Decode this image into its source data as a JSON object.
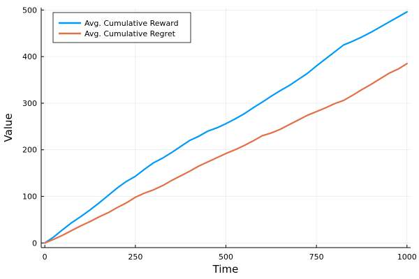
{
  "chart_data": {
    "type": "line",
    "title": "",
    "xlabel": "Time",
    "ylabel": "Value",
    "xlim": [
      -10,
      1010
    ],
    "ylim": [
      -10,
      505
    ],
    "xticks": [
      0,
      250,
      500,
      750,
      1000
    ],
    "yticks": [
      0,
      100,
      200,
      300,
      400,
      500
    ],
    "grid": true,
    "legend_position": "top-left",
    "series": [
      {
        "name": "Avg. Cumulative Reward",
        "color": "#009AFA",
        "x": [
          0,
          25,
          50,
          75,
          100,
          125,
          150,
          175,
          200,
          225,
          250,
          275,
          300,
          325,
          350,
          375,
          400,
          425,
          450,
          475,
          500,
          525,
          550,
          575,
          600,
          625,
          650,
          675,
          700,
          725,
          750,
          775,
          800,
          825,
          850,
          875,
          900,
          925,
          950,
          975,
          1000
        ],
        "y": [
          0,
          13,
          29,
          44,
          57,
          71,
          86,
          102,
          118,
          132,
          143,
          158,
          172,
          182,
          194,
          207,
          220,
          229,
          240,
          247,
          256,
          266,
          277,
          290,
          302,
          315,
          327,
          338,
          351,
          364,
          380,
          395,
          410,
          425,
          433,
          442,
          452,
          463,
          474,
          485,
          496
        ]
      },
      {
        "name": "Avg. Cumulative Regret",
        "color": "#E26F46",
        "x": [
          0,
          25,
          50,
          75,
          100,
          125,
          150,
          175,
          200,
          225,
          250,
          275,
          300,
          325,
          350,
          375,
          400,
          425,
          450,
          475,
          500,
          525,
          550,
          575,
          600,
          625,
          650,
          675,
          700,
          725,
          750,
          775,
          800,
          825,
          850,
          875,
          900,
          925,
          950,
          975,
          1000
        ],
        "y": [
          0,
          8,
          17,
          27,
          37,
          46,
          56,
          65,
          76,
          86,
          98,
          107,
          114,
          123,
          134,
          144,
          154,
          165,
          174,
          183,
          192,
          200,
          209,
          219,
          230,
          236,
          244,
          254,
          264,
          274,
          282,
          290,
          299,
          306,
          317,
          329,
          340,
          352,
          364,
          373,
          385
        ]
      }
    ]
  }
}
